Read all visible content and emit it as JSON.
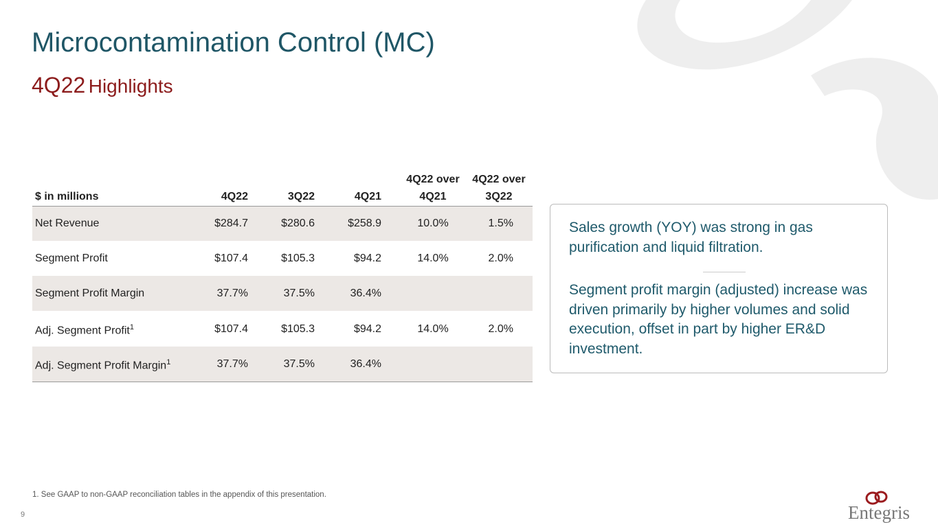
{
  "header": {
    "title": "Microcontamination Control (MC)",
    "subtitle_period": "4Q22",
    "subtitle_text": "Highlights"
  },
  "table": {
    "columns": [
      "$ in millions",
      "4Q22",
      "3Q22",
      "4Q21",
      [
        "4Q22 over",
        "4Q21"
      ],
      [
        "4Q22 over",
        "3Q22"
      ]
    ],
    "rows": [
      {
        "label": "Net Revenue",
        "cells": [
          "$284.7",
          "$280.6",
          "$258.9",
          "10.0%",
          "1.5%"
        ]
      },
      {
        "label": "Segment Profit",
        "cells": [
          "$107.4",
          "$105.3",
          "$94.2",
          "14.0%",
          "2.0%"
        ]
      },
      {
        "label": "Segment Profit Margin",
        "cells": [
          "37.7%",
          "37.5%",
          "36.4%"
        ]
      },
      {
        "label": "Adj. Segment Profit",
        "note": "1",
        "cells": [
          "$107.4",
          "$105.3",
          "$94.2",
          "14.0%",
          "2.0%"
        ]
      },
      {
        "label": "Adj. Segment Profit Margin",
        "note": "1",
        "cells": [
          "37.7%",
          "37.5%",
          "36.4%"
        ]
      }
    ]
  },
  "highlights": [
    "Sales growth (YOY) was strong in gas purification and liquid filtration.",
    "Segment profit margin (adjusted) increase was driven primarily by higher volumes and solid execution, offset in part by higher ER&D investment."
  ],
  "footnote": "1.  See GAAP to non-GAAP reconciliation tables in the appendix of this presentation.",
  "page_number": "9",
  "logo": "Entegris"
}
